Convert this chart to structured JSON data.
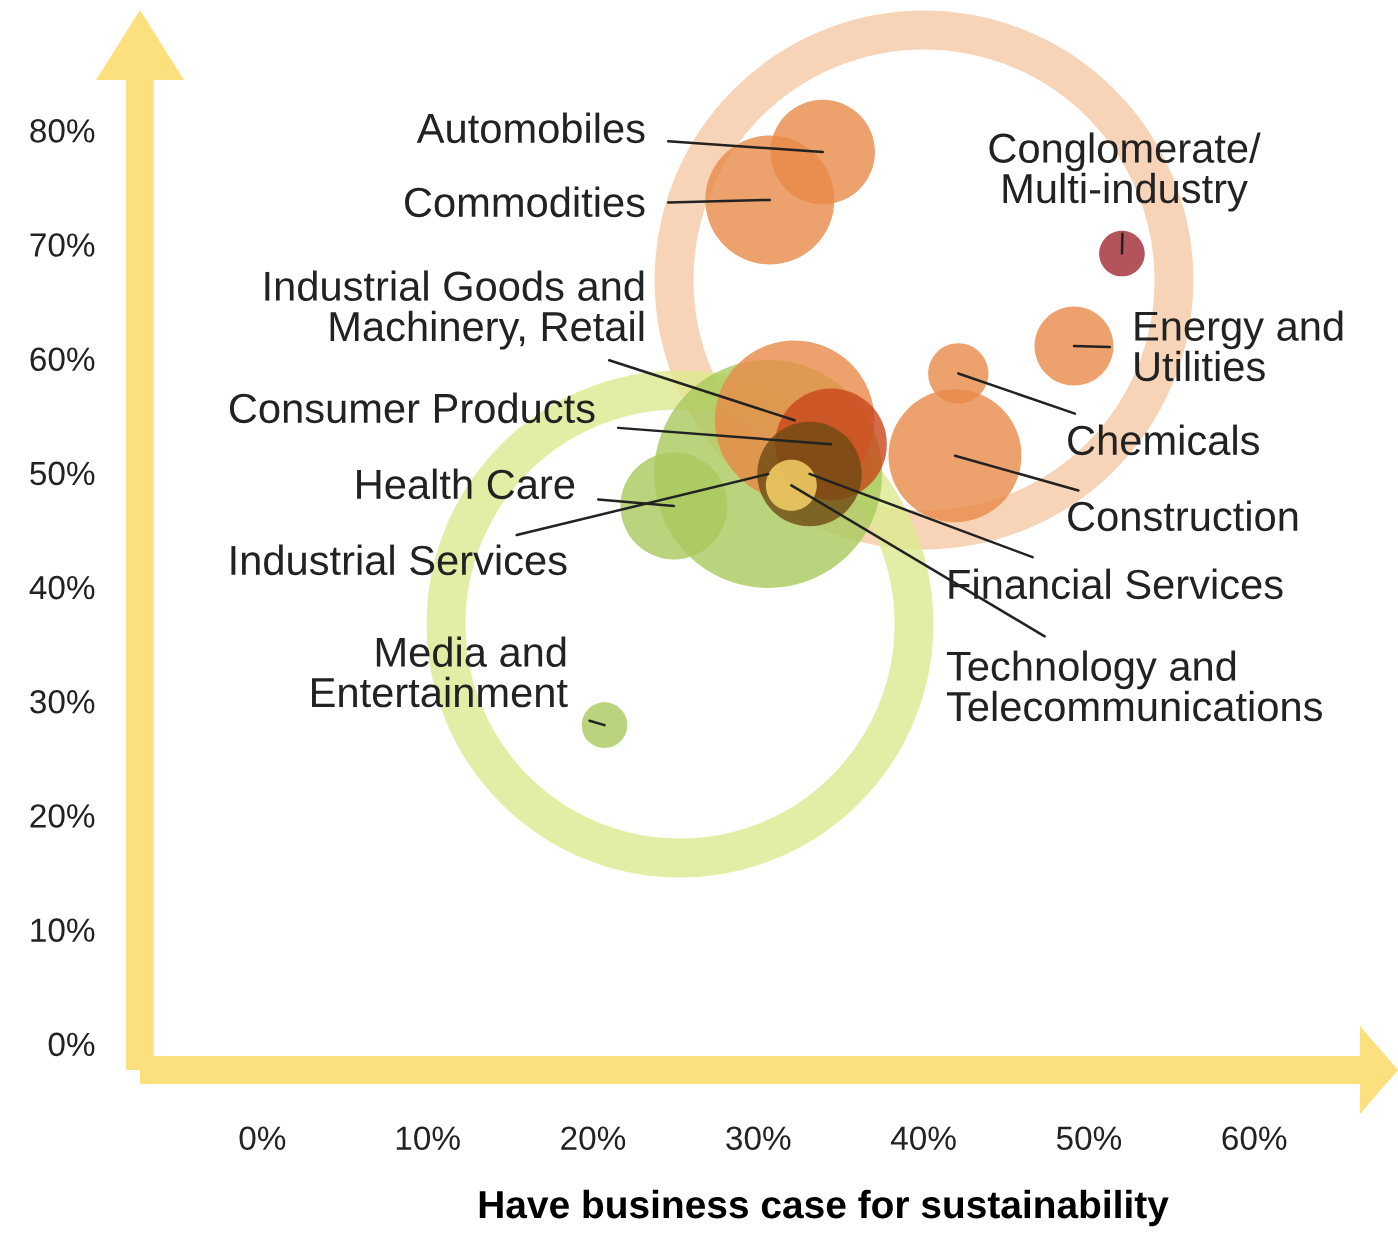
{
  "chart_data": {
    "type": "bubble",
    "xlabel": "Have business case for sustainability",
    "xlim": [
      -7.4,
      66.4
    ],
    "ylim": [
      -2.3,
      84.4
    ],
    "xticks": [
      {
        "value": 0,
        "label": "0%"
      },
      {
        "value": 10,
        "label": "10%"
      },
      {
        "value": 20,
        "label": "20%"
      },
      {
        "value": 30,
        "label": "30%"
      },
      {
        "value": 40,
        "label": "40%"
      },
      {
        "value": 50,
        "label": "50%"
      },
      {
        "value": 60,
        "label": "60%"
      }
    ],
    "yticks": [
      {
        "value": 0,
        "label": "0%"
      },
      {
        "value": 10,
        "label": "10%"
      },
      {
        "value": 20,
        "label": "20%"
      },
      {
        "value": 30,
        "label": "30%"
      },
      {
        "value": 40,
        "label": "40%"
      },
      {
        "value": 50,
        "label": "50%"
      },
      {
        "value": 60,
        "label": "60%"
      },
      {
        "value": 70,
        "label": "70%"
      },
      {
        "value": 80,
        "label": "80%"
      }
    ],
    "grid": false,
    "legend": false,
    "x": [
      30.6,
      32.2,
      33.9,
      30.7,
      52.0,
      49.1,
      42.1,
      41.9,
      34.4,
      33.1,
      24.9,
      32.0,
      20.7
    ],
    "values": [
      49.9,
      54.6,
      78.1,
      73.9,
      69.2,
      61.1,
      58.7,
      51.5,
      52.5,
      49.9,
      47.1,
      48.9,
      27.9
    ],
    "sizes": [
      1,
      0.49,
      0.21,
      0.32,
      0.04,
      0.12,
      0.07,
      0.34,
      0.24,
      0.21,
      0.22,
      0.05,
      0.04
    ],
    "colors": [
      "#a9c95c",
      "#e98a48",
      "#e98a48",
      "#e98a48",
      "#a02833",
      "#e98a48",
      "#e98a48",
      "#e98a48",
      "#c8461c",
      "#6e4a12",
      "#a9c95c",
      "#fbd86c",
      "#a9c95c"
    ],
    "annotations": [
      {
        "text": "Industrial Services",
        "x": 30.6,
        "y": 49.9
      },
      {
        "text": "Industrial Goods and\nMachinery, Retail",
        "x": 32.2,
        "y": 54.6
      },
      {
        "text": "Automobiles",
        "x": 33.9,
        "y": 78.1
      },
      {
        "text": "Commodities",
        "x": 30.7,
        "y": 73.9
      },
      {
        "text": "Conglomerate/\nMulti-industry",
        "x": 52.0,
        "y": 69.2
      },
      {
        "text": "Energy and\nUtilities",
        "x": 49.1,
        "y": 61.1
      },
      {
        "text": "Chemicals",
        "x": 42.1,
        "y": 58.7
      },
      {
        "text": "Construction",
        "x": 41.9,
        "y": 51.5
      },
      {
        "text": "Consumer Products",
        "x": 34.4,
        "y": 52.5
      },
      {
        "text": "Financial Services",
        "x": 33.1,
        "y": 49.9
      },
      {
        "text": "Health Care",
        "x": 24.9,
        "y": 47.1
      },
      {
        "text": "Technology and\nTelecommunications",
        "x": 32.0,
        "y": 48.9
      },
      {
        "text": "Media and\nEntertainment",
        "x": 20.7,
        "y": 27.9
      }
    ]
  }
}
